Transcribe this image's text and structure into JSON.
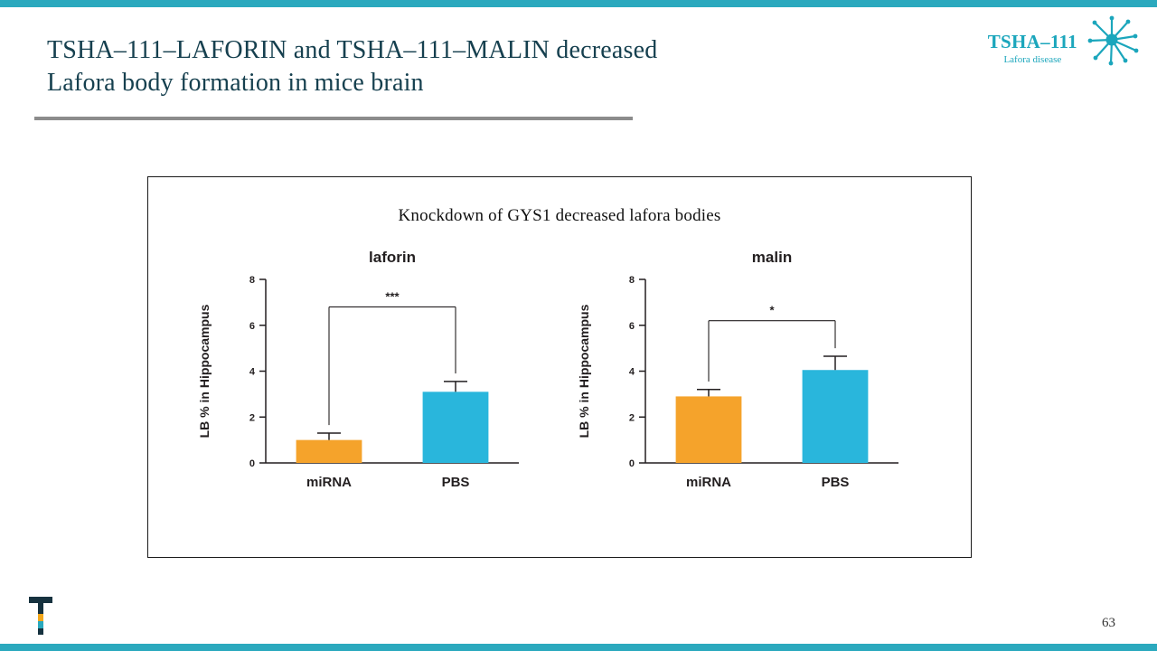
{
  "slide": {
    "title_line1": "TSHA–111–LAFORIN and TSHA–111–MALIN decreased",
    "title_line2": "Lafora body formation in mice brain",
    "page_number": "63"
  },
  "brand": {
    "name": "TSHA–111",
    "subtitle": "Lafora disease"
  },
  "figure": {
    "title": "Knockdown of GYS1 decreased lafora bodies"
  },
  "chart_data": [
    {
      "type": "bar",
      "title": "laforin",
      "categories": [
        "miRNA",
        "PBS"
      ],
      "values": [
        1.0,
        3.1
      ],
      "errors": [
        0.3,
        0.45
      ],
      "ylabel": "LB % in Hippocampus",
      "ylim": [
        0,
        8
      ],
      "yticks": [
        0,
        2,
        4,
        6,
        8
      ],
      "significance": {
        "label": "***",
        "y": 6.8
      },
      "bar_colors": [
        "#F5A32B",
        "#29B6DC"
      ],
      "grid": false,
      "legend": "none"
    },
    {
      "type": "bar",
      "title": "malin",
      "categories": [
        "miRNA",
        "PBS"
      ],
      "values": [
        2.9,
        4.05
      ],
      "errors": [
        0.3,
        0.6
      ],
      "ylabel": "LB % in Hippocampus",
      "ylim": [
        0,
        8
      ],
      "yticks": [
        0,
        2,
        4,
        6,
        8
      ],
      "significance": {
        "label": "*",
        "y": 6.2
      },
      "bar_colors": [
        "#F5A32B",
        "#29B6DC"
      ],
      "grid": false,
      "legend": "none"
    }
  ],
  "colors": {
    "accent_bar": "#2BA9BE",
    "title_text": "#16404F",
    "divider": "#8C8C8C",
    "brand_text": "#1BA6BC",
    "bar_orange": "#F5A32B",
    "bar_cyan": "#29B6DC"
  }
}
